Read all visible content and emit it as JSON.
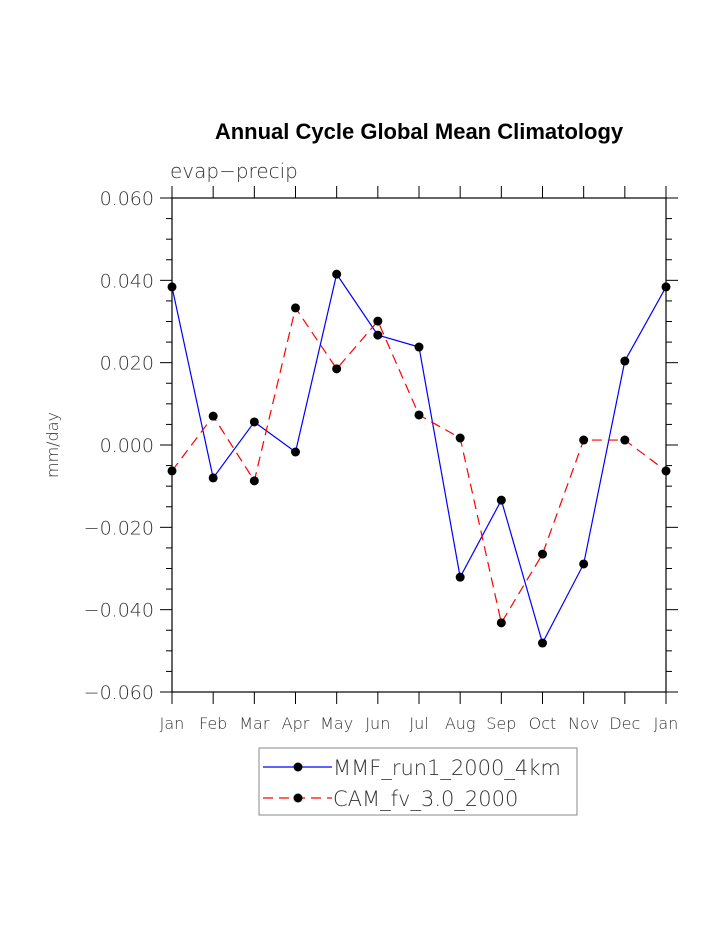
{
  "chart_data": {
    "type": "line",
    "title": "Annual Cycle Global Mean Climatology",
    "subtitle": "evap−precip",
    "ylabel": "mm/day",
    "xlabel": "",
    "categories": [
      "Jan",
      "Feb",
      "Mar",
      "Apr",
      "May",
      "Jun",
      "Jul",
      "Aug",
      "Sep",
      "Oct",
      "Nov",
      "Dec",
      "Jan"
    ],
    "ylim": [
      -0.06,
      0.06
    ],
    "yticks": [
      -0.06,
      -0.04,
      -0.02,
      0.0,
      0.02,
      0.04,
      0.06
    ],
    "ytick_labels": [
      "−0.060",
      "−0.040",
      "−0.020",
      "0.000",
      "0.020",
      "0.040",
      "0.060"
    ],
    "minor_tick_step": 0.005,
    "grid": false,
    "legend_position": "bottom",
    "series": [
      {
        "name": "MMF_run1_2000_4km",
        "color": "#0000ff",
        "dash": "solid",
        "marker": "filled-circle",
        "values": [
          0.0384,
          -0.008,
          0.0056,
          -0.0017,
          0.0415,
          0.0267,
          0.0238,
          -0.0321,
          -0.0134,
          -0.0481,
          -0.0289,
          0.0204,
          0.0384
        ]
      },
      {
        "name": "CAM_fv_3.0_2000",
        "color": "#ff0000",
        "dash": "dashed",
        "marker": "filled-circle",
        "values": [
          -0.0063,
          0.007,
          -0.0087,
          0.0333,
          0.0185,
          0.0301,
          0.0073,
          0.0017,
          -0.0432,
          -0.0265,
          0.0012,
          0.0012,
          -0.0063
        ]
      }
    ]
  }
}
